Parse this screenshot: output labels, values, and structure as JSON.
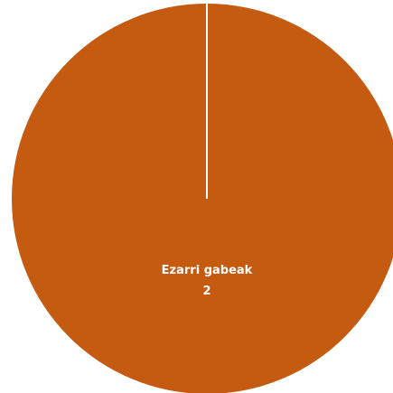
{
  "chart_data": {
    "type": "pie",
    "categories": [
      "Ezarri gabeak"
    ],
    "values": [
      2
    ],
    "colors": [
      "#c55a11"
    ]
  }
}
